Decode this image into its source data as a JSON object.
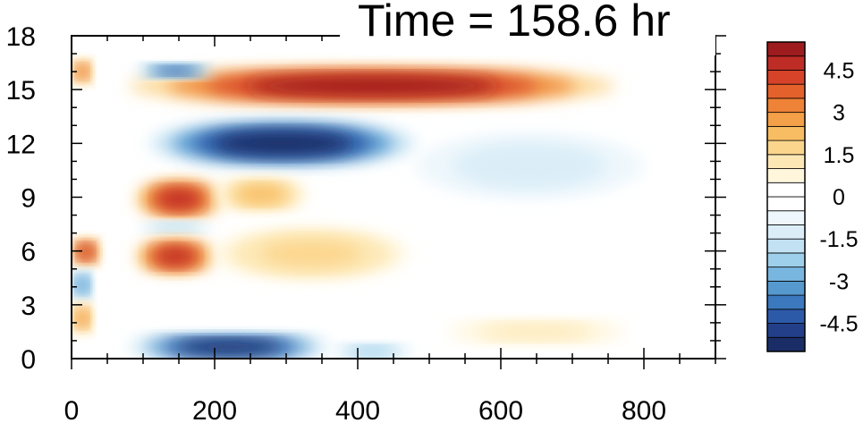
{
  "chart_data": {
    "type": "heatmap",
    "title": "Time = 158.6 hr",
    "xlabel": "",
    "ylabel": "",
    "xlim": [
      0,
      900
    ],
    "ylim": [
      0,
      18
    ],
    "x_ticks": [
      0,
      200,
      400,
      600,
      800
    ],
    "y_ticks": [
      0,
      3,
      6,
      9,
      12,
      15,
      18
    ],
    "x_tick_labels": [
      "0",
      "200",
      "400",
      "600",
      "800"
    ],
    "y_tick_labels": [
      "0",
      "3",
      "6",
      "9",
      "12",
      "15",
      "18"
    ],
    "colorbar": {
      "levels": [
        -5.5,
        -5,
        -4.5,
        -4,
        -3.5,
        -3,
        -2.5,
        -2,
        -1.5,
        -1,
        -0.5,
        0,
        0.5,
        1,
        1.5,
        2,
        2.5,
        3,
        3.5,
        4,
        4.5,
        5,
        5.5
      ],
      "colors": [
        "#1b2d66",
        "#233f8a",
        "#2d5aa8",
        "#3c78be",
        "#5699cf",
        "#78b6df",
        "#9ecfeb",
        "#c2e2f3",
        "#dbeef8",
        "#eef7fc",
        "#ffffff",
        "#ffffff",
        "#fff6dc",
        "#fde8b5",
        "#fcd58d",
        "#f8bd63",
        "#f3a048",
        "#ee8236",
        "#e4612c",
        "#d64329",
        "#be2c26",
        "#9e1b1e"
      ],
      "tick_values": [
        4.5,
        3,
        1.5,
        0,
        -1.5,
        -3,
        -4.5
      ],
      "tick_labels": [
        "4.5",
        "3",
        "1.5",
        "0",
        "-1.5",
        "-3",
        "-4.5"
      ]
    },
    "features": [
      {
        "x": [
          80,
          760
        ],
        "y": [
          14.2,
          16.2
        ],
        "value": 5.0
      },
      {
        "x": [
          90,
          200
        ],
        "y": [
          15.7,
          16.4
        ],
        "value": -4.2
      },
      {
        "x": [
          0,
          30
        ],
        "y": [
          15.4,
          16.6
        ],
        "value": 3.6
      },
      {
        "x": [
          110,
          480
        ],
        "y": [
          10.8,
          13.2
        ],
        "value": -5.2
      },
      {
        "x": [
          480,
          800
        ],
        "y": [
          9.0,
          12.5
        ],
        "value": -1.5
      },
      {
        "x": [
          90,
          210
        ],
        "y": [
          7.9,
          9.9
        ],
        "value": 4.5
      },
      {
        "x": [
          200,
          330
        ],
        "y": [
          8.3,
          10.0
        ],
        "value": 2.3
      },
      {
        "x": [
          90,
          200
        ],
        "y": [
          7.0,
          7.6
        ],
        "value": -2.0
      },
      {
        "x": [
          90,
          200
        ],
        "y": [
          4.8,
          6.6
        ],
        "value": 4.8
      },
      {
        "x": [
          200,
          470
        ],
        "y": [
          4.5,
          7.2
        ],
        "value": 1.8
      },
      {
        "x": [
          0,
          40
        ],
        "y": [
          5.3,
          6.6
        ],
        "value": 4.8
      },
      {
        "x": [
          0,
          30
        ],
        "y": [
          3.4,
          4.8
        ],
        "value": -3.5
      },
      {
        "x": [
          0,
          30
        ],
        "y": [
          1.5,
          3.0
        ],
        "value": 3.0
      },
      {
        "x": [
          80,
          360
        ],
        "y": [
          0.0,
          1.3
        ],
        "value": -5.2
      },
      {
        "x": [
          360,
          480
        ],
        "y": [
          0.0,
          0.8
        ],
        "value": -2.5
      },
      {
        "x": [
          500,
          800
        ],
        "y": [
          0.8,
          2.2
        ],
        "value": 1.2
      }
    ]
  }
}
